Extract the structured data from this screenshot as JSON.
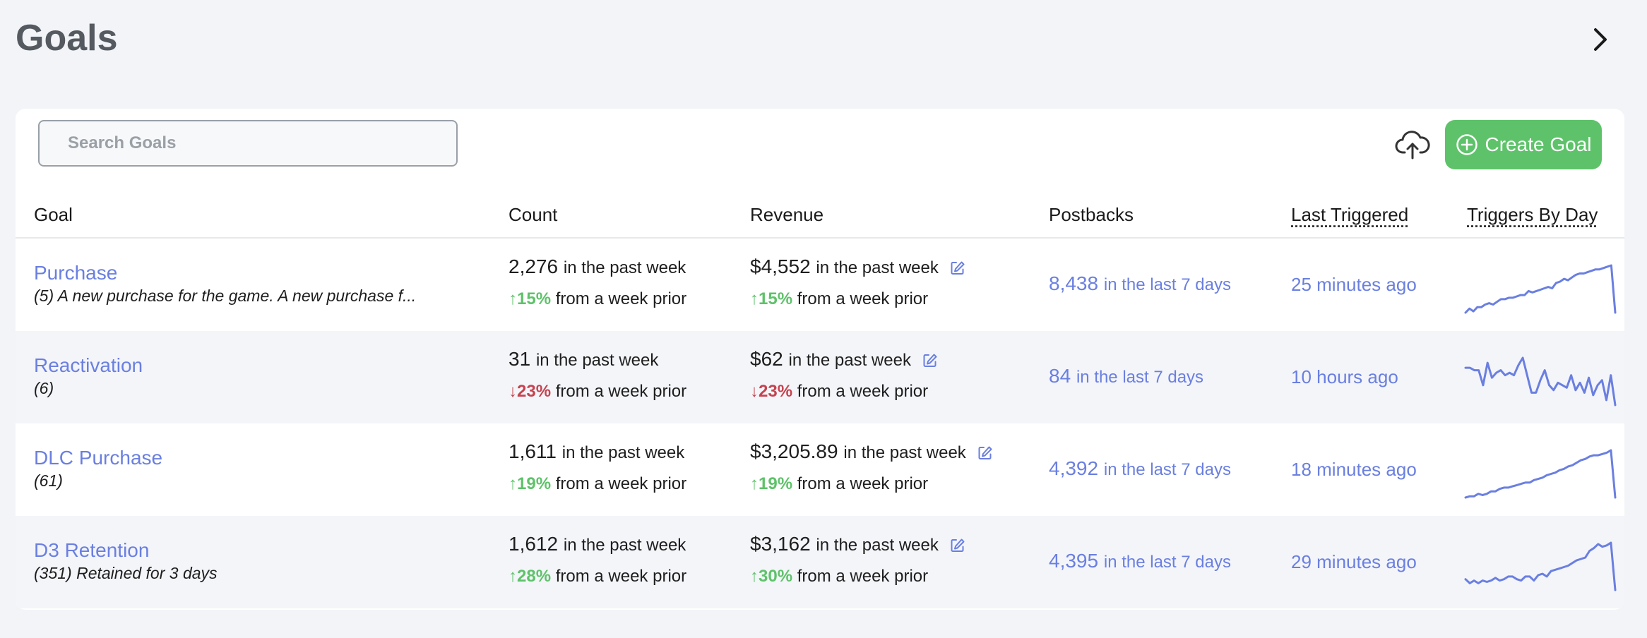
{
  "page": {
    "title": "Goals"
  },
  "search": {
    "placeholder": "Search Goals"
  },
  "toolbar": {
    "create_label": "Create Goal"
  },
  "colors": {
    "accent": "#6a7fe0",
    "positive": "#5ec26a",
    "negative": "#c6424f",
    "button": "#5ec26a"
  },
  "table": {
    "headers": {
      "goal": "Goal",
      "count": "Count",
      "revenue": "Revenue",
      "postbacks": "Postbacks",
      "last_triggered": "Last Triggered",
      "triggers_by_day": "Triggers By Day"
    },
    "rows": [
      {
        "name": "Purchase",
        "desc": "(5) A new purchase for the game. A new purchase f...",
        "count": "2,276",
        "count_suffix": "in the past week",
        "count_arrow": "↑",
        "count_delta": "15%",
        "count_dir": "up",
        "count_prior": "from a week prior",
        "revenue": "$4,552",
        "revenue_suffix": "in the past week",
        "revenue_arrow": "↑",
        "revenue_delta": "15%",
        "revenue_dir": "up",
        "revenue_prior": "from a week prior",
        "postbacks": "8,438",
        "postbacks_suffix": "in the last 7 days",
        "last_triggered": "25 minutes ago",
        "spark": [
          2,
          5,
          3,
          6,
          6,
          8,
          9,
          8,
          10,
          12,
          12,
          13,
          13,
          14,
          15,
          15,
          18,
          17,
          18,
          19,
          20,
          21,
          20,
          24,
          25,
          27,
          26,
          28,
          30,
          31,
          31,
          32,
          33,
          34,
          34,
          35,
          36,
          37,
          2
        ]
      },
      {
        "name": "Reactivation",
        "desc": "(6)",
        "count": "31",
        "count_suffix": "in the past week",
        "count_arrow": "↓",
        "count_delta": "23%",
        "count_dir": "down",
        "count_prior": "from a week prior",
        "revenue": "$62",
        "revenue_suffix": "in the past week",
        "revenue_arrow": "↓",
        "revenue_delta": "23%",
        "revenue_dir": "down",
        "revenue_prior": "from a week prior",
        "postbacks": "84",
        "postbacks_suffix": "in the last 7 days",
        "last_triggered": "10 hours ago",
        "spark": [
          32,
          32,
          30,
          30,
          18,
          36,
          24,
          28,
          30,
          26,
          28,
          26,
          34,
          40,
          26,
          12,
          12,
          22,
          30,
          18,
          14,
          20,
          18,
          16,
          26,
          14,
          20,
          12,
          24,
          10,
          18,
          22,
          6,
          26,
          2
        ]
      },
      {
        "name": "DLC Purchase",
        "desc": "(61)",
        "count": "1,611",
        "count_suffix": "in the past week",
        "count_arrow": "↑",
        "count_delta": "19%",
        "count_dir": "up",
        "count_prior": "from a week prior",
        "revenue": "$3,205.89",
        "revenue_suffix": "in the past week",
        "revenue_arrow": "↑",
        "revenue_delta": "19%",
        "revenue_dir": "up",
        "revenue_prior": "from a week prior",
        "postbacks": "4,392",
        "postbacks_suffix": "in the last 7 days",
        "last_triggered": "18 minutes ago",
        "spark": [
          2,
          3,
          3,
          5,
          4,
          5,
          7,
          7,
          9,
          10,
          10,
          11,
          12,
          13,
          14,
          14,
          16,
          17,
          18,
          20,
          21,
          22,
          24,
          25,
          27,
          28,
          30,
          32,
          33,
          35,
          36,
          36,
          37,
          38,
          40,
          2
        ]
      },
      {
        "name": "D3 Retention",
        "desc": "(351) Retained for 3 days",
        "count": "1,612",
        "count_suffix": "in the past week",
        "count_arrow": "↑",
        "count_delta": "28%",
        "count_dir": "up",
        "count_prior": "from a week prior",
        "revenue": "$3,162",
        "revenue_suffix": "in the past week",
        "revenue_arrow": "↑",
        "revenue_delta": "30%",
        "revenue_dir": "up",
        "revenue_prior": "from a week prior",
        "postbacks": "4,395",
        "postbacks_suffix": "in the last 7 days",
        "last_triggered": "29 minutes ago",
        "spark": [
          10,
          7,
          9,
          7,
          9,
          8,
          9,
          11,
          9,
          10,
          12,
          12,
          10,
          9,
          12,
          12,
          9,
          13,
          14,
          12,
          16,
          17,
          18,
          19,
          20,
          22,
          24,
          25,
          26,
          31,
          33,
          36,
          34,
          35,
          37,
          2
        ]
      }
    ]
  }
}
